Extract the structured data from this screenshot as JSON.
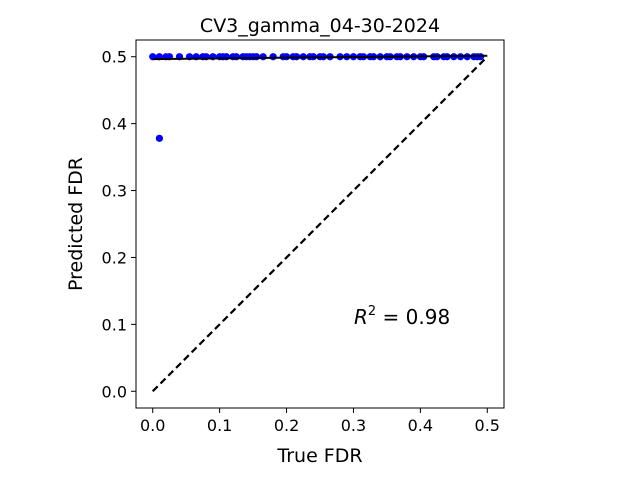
{
  "chart_data": {
    "type": "scatter",
    "title": "CV3_gamma_04-30-2024",
    "xlabel": "True FDR",
    "ylabel": "Predicted FDR",
    "xlim": [
      -0.025,
      0.525
    ],
    "ylim": [
      -0.025,
      0.525
    ],
    "x_ticks": [
      "0.0",
      "0.1",
      "0.2",
      "0.3",
      "0.4",
      "0.5"
    ],
    "y_ticks": [
      "0.0",
      "0.1",
      "0.2",
      "0.3",
      "0.4",
      "0.5"
    ],
    "grid": false,
    "point_color": "#0000ff",
    "annotation": {
      "text_base": "R",
      "text_sup": "2",
      "text_rest": " = 0.98",
      "x": 0.3,
      "y": 0.1
    },
    "identity_line": {
      "x": [
        0,
        0.5
      ],
      "y": [
        0,
        0.5
      ],
      "style": "dashed",
      "color": "#000000"
    },
    "fit_line": {
      "x": [
        0,
        0.5
      ],
      "y": [
        0.4965,
        0.5015
      ],
      "style": "solid",
      "color": "#000000"
    },
    "points": {
      "x": [
        0.0,
        0.01,
        0.02,
        0.025,
        0.04,
        0.055,
        0.065,
        0.075,
        0.08,
        0.09,
        0.1,
        0.105,
        0.11,
        0.12,
        0.125,
        0.135,
        0.14,
        0.145,
        0.15,
        0.155,
        0.165,
        0.18,
        0.195,
        0.2,
        0.21,
        0.215,
        0.225,
        0.235,
        0.24,
        0.25,
        0.255,
        0.265,
        0.28,
        0.29,
        0.3,
        0.31,
        0.315,
        0.325,
        0.33,
        0.34,
        0.35,
        0.355,
        0.365,
        0.37,
        0.38,
        0.39,
        0.4,
        0.405,
        0.42,
        0.425,
        0.435,
        0.44,
        0.45,
        0.46,
        0.47,
        0.48,
        0.485,
        0.49,
        0.01
      ],
      "y": [
        0.5,
        0.5,
        0.5,
        0.5,
        0.5,
        0.5,
        0.5,
        0.5,
        0.5,
        0.5,
        0.5,
        0.5,
        0.5,
        0.5,
        0.5,
        0.5,
        0.5,
        0.5,
        0.5,
        0.5,
        0.5,
        0.5,
        0.5,
        0.5,
        0.5,
        0.5,
        0.5,
        0.5,
        0.5,
        0.5,
        0.5,
        0.5,
        0.5,
        0.5,
        0.5,
        0.5,
        0.5,
        0.5,
        0.5,
        0.5,
        0.5,
        0.5,
        0.5,
        0.5,
        0.5,
        0.5,
        0.5,
        0.5,
        0.5,
        0.5,
        0.5,
        0.5,
        0.5,
        0.5,
        0.5,
        0.5,
        0.5,
        0.5,
        0.378
      ]
    }
  }
}
